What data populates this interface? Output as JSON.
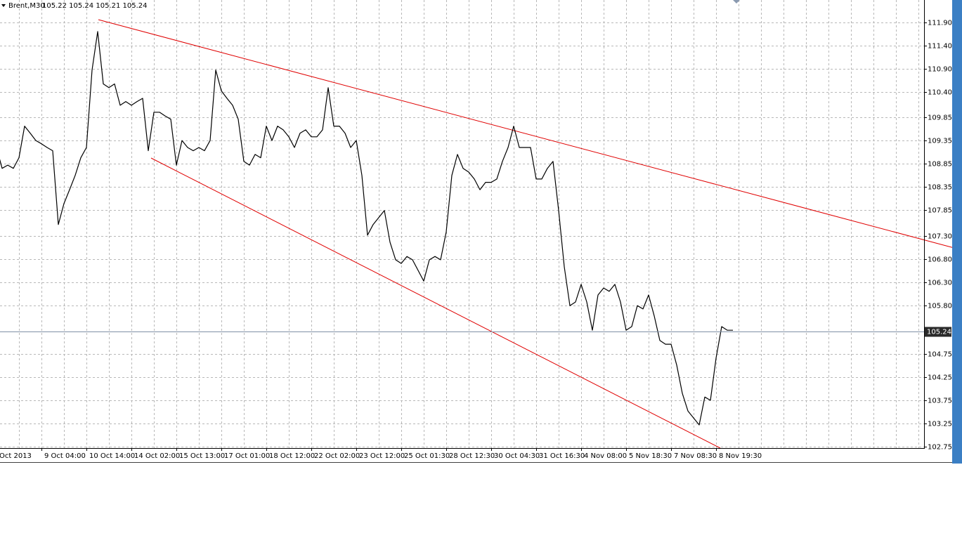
{
  "chart_data": {
    "type": "line",
    "title": "Brent,M30",
    "subtitle": "105.22 105.24 105.21 105.24",
    "color": "#000000",
    "grid": true,
    "current_price": 105.24,
    "ylim": [
      102.72,
      112.38
    ],
    "yticks": [
      {
        "value": 111.9,
        "label": "111.90"
      },
      {
        "value": 111.4,
        "label": "111.40"
      },
      {
        "value": 110.9,
        "label": "110.90"
      },
      {
        "value": 110.4,
        "label": "110.40"
      },
      109.85,
      109.35,
      108.85,
      108.35,
      107.85,
      {
        "value": 107.3,
        "label": "107.30"
      },
      {
        "value": 106.8,
        "label": "106.80"
      },
      {
        "value": 106.3,
        "label": "106.30"
      },
      {
        "value": 105.8,
        "label": "105.80"
      },
      104.75,
      104.25,
      103.75,
      103.25,
      102.75
    ],
    "categories": [
      "Oct 2013",
      null,
      null,
      null,
      null,
      null,
      null,
      null,
      "9 Oct 04:00",
      null,
      null,
      null,
      null,
      null,
      null,
      null,
      "10 Oct 14:00",
      null,
      null,
      null,
      null,
      null,
      null,
      null,
      "14 Oct 02:00",
      null,
      null,
      null,
      null,
      null,
      null,
      null,
      "15 Oct 13:00",
      null,
      null,
      null,
      null,
      null,
      null,
      null,
      "17 Oct 01:00",
      null,
      null,
      null,
      null,
      null,
      null,
      null,
      "18 Oct 12:00",
      null,
      null,
      null,
      null,
      null,
      null,
      null,
      "22 Oct 02:00",
      null,
      null,
      null,
      null,
      null,
      null,
      null,
      "23 Oct 12:00",
      null,
      null,
      null,
      null,
      null,
      null,
      null,
      "25 Oct 01:30",
      null,
      null,
      null,
      null,
      null,
      null,
      null,
      "28 Oct 12:30",
      null,
      null,
      null,
      null,
      null,
      null,
      null,
      "30 Oct 04:30",
      null,
      null,
      null,
      null,
      null,
      null,
      null,
      "31 Oct 16:30",
      null,
      null,
      null,
      null,
      null,
      null,
      null,
      "4 Nov 08:00",
      null,
      null,
      null,
      null,
      null,
      null,
      null,
      "5 Nov 18:30",
      null,
      null,
      null,
      null,
      null,
      null,
      null,
      "7 Nov 08:30",
      null,
      null,
      null,
      null,
      null,
      null,
      null,
      "8 Nov 19:30",
      null,
      null,
      null
    ],
    "values": [
      109.2,
      108.75,
      108.82,
      108.75,
      108.98,
      109.66,
      109.51,
      109.35,
      109.28,
      109.2,
      109.13,
      107.54,
      107.99,
      108.29,
      108.6,
      108.98,
      109.2,
      110.87,
      111.7,
      110.57,
      110.49,
      110.57,
      110.11,
      110.19,
      110.11,
      110.19,
      110.26,
      109.13,
      109.96,
      109.96,
      109.88,
      109.81,
      108.82,
      109.35,
      109.2,
      109.13,
      109.2,
      109.13,
      109.35,
      110.87,
      110.42,
      110.26,
      110.11,
      109.81,
      108.9,
      108.82,
      109.05,
      108.98,
      109.66,
      109.35,
      109.66,
      109.58,
      109.43,
      109.2,
      109.51,
      109.58,
      109.43,
      109.43,
      109.58,
      110.49,
      109.66,
      109.66,
      109.51,
      109.2,
      109.35,
      108.6,
      107.31,
      107.54,
      107.69,
      107.84,
      107.16,
      106.78,
      106.7,
      106.85,
      106.78,
      106.55,
      106.32,
      106.78,
      106.85,
      106.78,
      107.38,
      108.6,
      109.05,
      108.75,
      108.67,
      108.52,
      108.29,
      108.45,
      108.45,
      108.52,
      108.9,
      109.2,
      109.66,
      109.2,
      109.2,
      109.2,
      108.52,
      108.52,
      108.75,
      108.9,
      107.84,
      106.63,
      105.79,
      105.87,
      106.25,
      105.87,
      105.26,
      106.02,
      106.17,
      106.1,
      106.25,
      105.87,
      105.26,
      105.34,
      105.79,
      105.72,
      106.02,
      105.57,
      105.04,
      104.96,
      104.96,
      104.51,
      103.9,
      103.52,
      103.37,
      103.22,
      103.82,
      103.75,
      104.66,
      105.34,
      105.26,
      105.26
    ]
  }
}
